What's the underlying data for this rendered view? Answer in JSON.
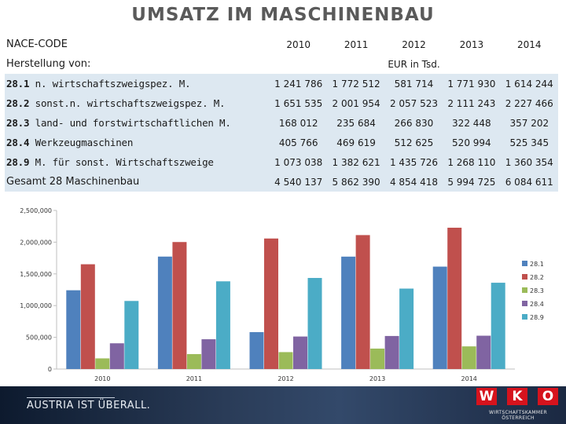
{
  "title": "UMSATZ IM MASCHINENBAU",
  "table": {
    "header_label": "NACE-CODE",
    "years": [
      "2010",
      "2011",
      "2012",
      "2013",
      "2014"
    ],
    "subheader_label": "Herstellung von:",
    "unit": "EUR in Tsd.",
    "rows": [
      {
        "code": "28.1",
        "label": " n. wirtschaftszweigspez. M.",
        "values": [
          "1 241 786",
          "1 772 512",
          "581 714",
          "1 771 930",
          "1 614 244"
        ]
      },
      {
        "code": "28.2",
        "label": " sonst.n. wirtschaftszweigspez. M.",
        "values": [
          "1 651 535",
          "2 001 954",
          "2 057 523",
          "2 111 243",
          "2 227 466"
        ]
      },
      {
        "code": "28.3",
        "label": " land- und forstwirtschaftlichen M.",
        "values": [
          "168 012",
          "235 684",
          "266 830",
          "322 448",
          "357 202"
        ]
      },
      {
        "code": "28.4",
        "label": " Werkzeugmaschinen",
        "values": [
          "405 766",
          "469 619",
          "512 625",
          "520 994",
          "525 345"
        ]
      },
      {
        "code": "28.9",
        "label": " M. für sonst. Wirtschaftszweige",
        "values": [
          "1 073 038",
          "1 382 621",
          "1 435 726",
          "1 268 110",
          "1 360 354"
        ]
      }
    ],
    "total_label": "Gesamt 28 Maschinenbau",
    "total_values": [
      "4 540 137",
      "5 862 390",
      "4 854 418",
      "5 994 725",
      "6 084 611"
    ]
  },
  "chart_data": {
    "type": "bar",
    "categories": [
      "2010",
      "2011",
      "2012",
      "2013",
      "2014"
    ],
    "series": [
      {
        "name": "28.1",
        "color": "#4f81bd",
        "values": [
          1241786,
          1772512,
          581714,
          1771930,
          1614244
        ]
      },
      {
        "name": "28.2",
        "color": "#c0504d",
        "values": [
          1651535,
          2001954,
          2057523,
          2111243,
          2227466
        ]
      },
      {
        "name": "28.3",
        "color": "#9bbb59",
        "values": [
          168012,
          235684,
          266830,
          322448,
          357202
        ]
      },
      {
        "name": "28.4",
        "color": "#8064a2",
        "values": [
          405766,
          469619,
          512625,
          520994,
          525345
        ]
      },
      {
        "name": "28.9",
        "color": "#4bacc6",
        "values": [
          1073038,
          1382621,
          1435726,
          1268110,
          1360354
        ]
      }
    ],
    "yticks": [
      0,
      500000,
      1000000,
      1500000,
      2000000,
      2500000
    ],
    "ytick_labels": [
      "0",
      "500,000",
      "1,000,000",
      "1,500,000",
      "2,000,000",
      "2,500,000"
    ],
    "ylim": [
      0,
      2500000
    ],
    "grid": false,
    "legend_position": "right"
  },
  "footer": {
    "slogan": "AUSTRIA IST ÜBERALL.",
    "logo_letters": [
      "W",
      "K",
      "O"
    ],
    "logo_tagline": "WIRTSCHAFTSKAMMER ÖSTERREICH"
  }
}
